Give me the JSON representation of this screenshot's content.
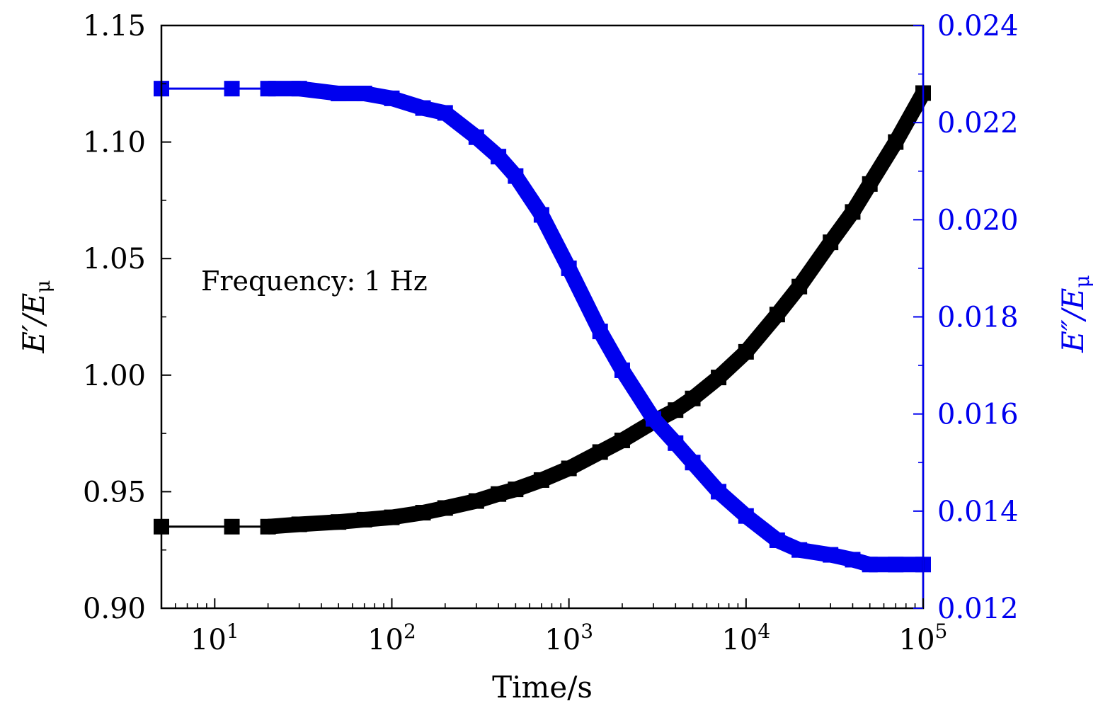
{
  "chart_data": {
    "type": "line",
    "annotation": "Frequency: 1 Hz",
    "xlabel": "Time/s",
    "ylabel_left": {
      "base": "E′/E",
      "sub": "μ"
    },
    "ylabel_right": {
      "base": "E″/E",
      "sub": "μ"
    },
    "x_scale": "log",
    "xlim": [
      5,
      100000
    ],
    "x_ticks": [
      {
        "value": 10,
        "base": "10",
        "exp": "1"
      },
      {
        "value": 100,
        "base": "10",
        "exp": "2"
      },
      {
        "value": 1000,
        "base": "10",
        "exp": "3"
      },
      {
        "value": 10000,
        "base": "10",
        "exp": "4"
      },
      {
        "value": 100000,
        "base": "10",
        "exp": "5"
      }
    ],
    "ylim_left": [
      0.9,
      1.15
    ],
    "yticks_left": [
      "0.90",
      "0.95",
      "1.00",
      "1.05",
      "1.10",
      "1.15"
    ],
    "ylim_right": [
      0.012,
      0.024
    ],
    "yticks_right": [
      "0.012",
      "0.014",
      "0.016",
      "0.018",
      "0.020",
      "0.022",
      "0.024"
    ],
    "grid": false,
    "colors": {
      "left": "#000000",
      "right": "#0000ee"
    },
    "series": [
      {
        "axis": "left",
        "color": "#000000",
        "x": [
          5,
          12.5,
          20,
          30,
          50,
          70,
          100,
          150,
          200,
          300,
          400,
          500,
          700,
          1000,
          1500,
          2000,
          3000,
          4000,
          5000,
          7000,
          10000,
          15000,
          20000,
          30000,
          40000,
          50000,
          70000,
          100000
        ],
        "y": [
          0.935,
          0.935,
          0.935,
          0.936,
          0.937,
          0.938,
          0.939,
          0.941,
          0.943,
          0.946,
          0.949,
          0.951,
          0.955,
          0.96,
          0.967,
          0.972,
          0.98,
          0.985,
          0.99,
          0.999,
          1.01,
          1.026,
          1.038,
          1.057,
          1.07,
          1.082,
          1.1,
          1.121
        ]
      },
      {
        "axis": "right",
        "color": "#0000ee",
        "x": [
          5,
          12.5,
          20,
          30,
          50,
          70,
          100,
          150,
          200,
          300,
          400,
          500,
          700,
          1000,
          1500,
          2000,
          3000,
          4000,
          5000,
          7000,
          10000,
          15000,
          20000,
          30000,
          40000,
          50000,
          70000,
          100000
        ],
        "y": [
          0.0227,
          0.0227,
          0.0227,
          0.0227,
          0.0226,
          0.0226,
          0.0225,
          0.0223,
          0.0222,
          0.0217,
          0.0213,
          0.0209,
          0.0201,
          0.019,
          0.0177,
          0.0169,
          0.0159,
          0.0154,
          0.015,
          0.0144,
          0.0139,
          0.0134,
          0.0132,
          0.0131,
          0.013,
          0.0129,
          0.0129,
          0.0129
        ]
      }
    ]
  }
}
